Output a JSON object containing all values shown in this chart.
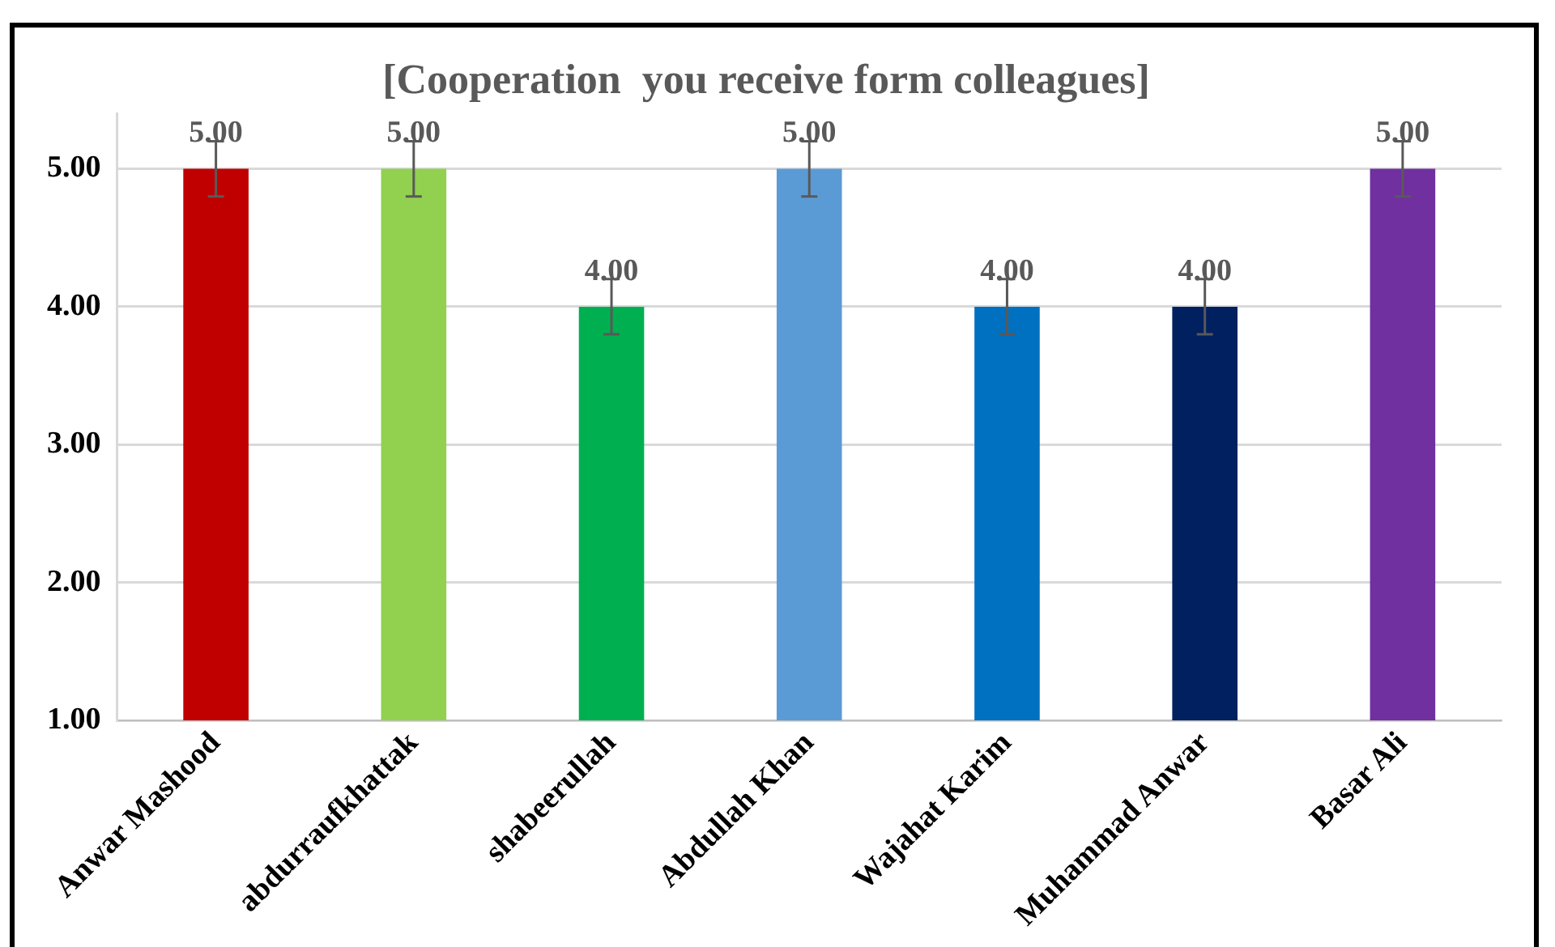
{
  "chart_data": {
    "type": "bar",
    "title": "[Cooperation  you receive form colleagues]",
    "categories": [
      "Anwar Mashood",
      "abdurraufkhattak",
      "shabeerullah",
      "Abdullah Khan",
      "Wajahat Karim",
      "Muhammad Anwar",
      "Basar Ali"
    ],
    "values": [
      5,
      5,
      4,
      5,
      4,
      4,
      5
    ],
    "colors": [
      "#c00000",
      "#92d050",
      "#00b050",
      "#5b9bd5",
      "#0070c0",
      "#002060",
      "#7030a0"
    ],
    "errors": [
      0.2,
      0.2,
      0.2,
      0.2,
      0.2,
      0.2,
      0.2
    ],
    "value_labels": [
      "5.00",
      "5.00",
      "4.00",
      "5.00",
      "4.00",
      "4.00",
      "5.00"
    ],
    "ylim": [
      1,
      5.4
    ],
    "yticks": [
      {
        "value": 1,
        "label": "1.00"
      },
      {
        "value": 2,
        "label": "2.00"
      },
      {
        "value": 3,
        "label": "3.00"
      },
      {
        "value": 4,
        "label": "4.00"
      },
      {
        "value": 5,
        "label": "5.00"
      }
    ],
    "grid": "y",
    "legend": false
  }
}
